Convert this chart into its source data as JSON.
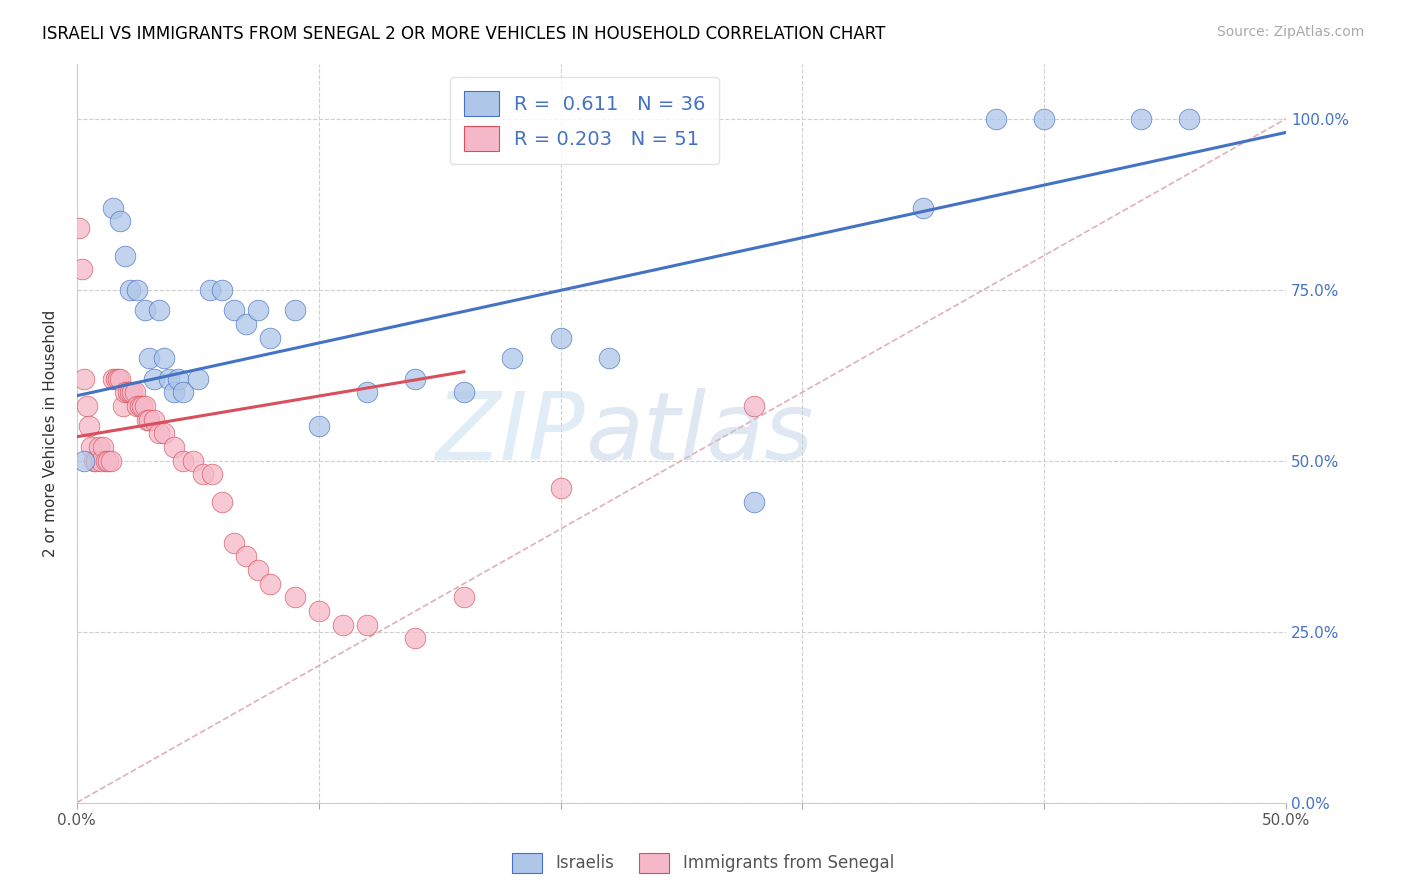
{
  "title": "ISRAELI VS IMMIGRANTS FROM SENEGAL 2 OR MORE VEHICLES IN HOUSEHOLD CORRELATION CHART",
  "source": "Source: ZipAtlas.com",
  "ylabel": "2 or more Vehicles in Household",
  "xmin": 0.0,
  "xmax": 0.5,
  "ymin": 0.0,
  "ymax": 1.08,
  "ytick_vals": [
    0.0,
    0.25,
    0.5,
    0.75,
    1.0
  ],
  "ytick_labels": [
    "0.0%",
    "25.0%",
    "50.0%",
    "75.0%",
    "100.0%"
  ],
  "xtick_vals": [
    0.0,
    0.1,
    0.2,
    0.3,
    0.4,
    0.5
  ],
  "xtick_labels": [
    "0.0%",
    "",
    "",
    "",
    "",
    "50.0%"
  ],
  "watermark_zip": "ZIP",
  "watermark_atlas": "atlas",
  "israelis_color": "#aec6e8",
  "senegal_color": "#f5b8c8",
  "line_israelis_color": "#4472c4",
  "line_senegal_color": "#d94f5c",
  "diagonal_color": "#cccccc",
  "israelis_x": [
    0.003,
    0.015,
    0.018,
    0.02,
    0.022,
    0.025,
    0.028,
    0.03,
    0.032,
    0.034,
    0.036,
    0.038,
    0.04,
    0.042,
    0.044,
    0.05,
    0.055,
    0.06,
    0.065,
    0.07,
    0.075,
    0.08,
    0.09,
    0.1,
    0.12,
    0.14,
    0.16,
    0.18,
    0.2,
    0.22,
    0.28,
    0.35,
    0.38,
    0.4,
    0.44,
    0.46
  ],
  "israelis_y": [
    0.5,
    0.87,
    0.85,
    0.8,
    0.75,
    0.75,
    0.72,
    0.65,
    0.62,
    0.72,
    0.65,
    0.62,
    0.6,
    0.62,
    0.6,
    0.62,
    0.75,
    0.75,
    0.72,
    0.7,
    0.72,
    0.68,
    0.72,
    0.55,
    0.6,
    0.62,
    0.6,
    0.65,
    0.68,
    0.65,
    0.44,
    0.87,
    1.0,
    1.0,
    1.0,
    1.0
  ],
  "senegal_x": [
    0.001,
    0.002,
    0.003,
    0.004,
    0.005,
    0.006,
    0.007,
    0.008,
    0.009,
    0.01,
    0.011,
    0.012,
    0.013,
    0.014,
    0.015,
    0.016,
    0.017,
    0.018,
    0.019,
    0.02,
    0.021,
    0.022,
    0.023,
    0.024,
    0.025,
    0.026,
    0.027,
    0.028,
    0.029,
    0.03,
    0.032,
    0.034,
    0.036,
    0.04,
    0.044,
    0.048,
    0.052,
    0.056,
    0.06,
    0.065,
    0.07,
    0.075,
    0.08,
    0.09,
    0.1,
    0.11,
    0.12,
    0.14,
    0.16,
    0.2,
    0.28
  ],
  "senegal_y": [
    0.84,
    0.78,
    0.62,
    0.58,
    0.55,
    0.52,
    0.5,
    0.5,
    0.52,
    0.5,
    0.52,
    0.5,
    0.5,
    0.5,
    0.62,
    0.62,
    0.62,
    0.62,
    0.58,
    0.6,
    0.6,
    0.6,
    0.6,
    0.6,
    0.58,
    0.58,
    0.58,
    0.58,
    0.56,
    0.56,
    0.56,
    0.54,
    0.54,
    0.52,
    0.5,
    0.5,
    0.48,
    0.48,
    0.44,
    0.38,
    0.36,
    0.34,
    0.32,
    0.3,
    0.28,
    0.26,
    0.26,
    0.24,
    0.3,
    0.46,
    0.58
  ],
  "isr_line_x": [
    0.0,
    0.5
  ],
  "isr_line_y": [
    0.595,
    0.98
  ],
  "sen_line_x": [
    0.0,
    0.16
  ],
  "sen_line_y": [
    0.535,
    0.63
  ]
}
